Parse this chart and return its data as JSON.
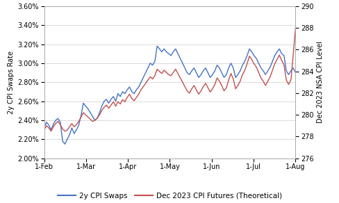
{
  "ylabel_left": "2y CPI Swaps Rate",
  "ylabel_right": "Dec 2023 NSA CPI Level",
  "ylim_left": [
    0.02,
    0.036
  ],
  "ylim_right": [
    276,
    290
  ],
  "yticks_left": [
    0.02,
    0.022,
    0.024,
    0.026,
    0.028,
    0.03,
    0.032,
    0.034,
    0.036
  ],
  "yticks_right": [
    276,
    278,
    280,
    282,
    284,
    286,
    288,
    290
  ],
  "xtick_labels": [
    "1-Feb",
    "1-Mar",
    "1-Apr",
    "1-May",
    "1-Jun",
    "1-Jul",
    "1-Aug"
  ],
  "color_swap": "#4472C4",
  "color_futures": "#C0504D",
  "legend_labels": [
    "2y CPI Swaps",
    "Dec 2023 CPI Futures (Theoretical)"
  ],
  "swap_data": [
    0.0232,
    0.0238,
    0.0235,
    0.023,
    0.0236,
    0.024,
    0.0242,
    0.0238,
    0.0218,
    0.0215,
    0.022,
    0.0225,
    0.0232,
    0.0226,
    0.023,
    0.0235,
    0.0245,
    0.0258,
    0.0255,
    0.0252,
    0.0248,
    0.0244,
    0.024,
    0.0242,
    0.0248,
    0.0255,
    0.026,
    0.0262,
    0.0258,
    0.0262,
    0.0265,
    0.026,
    0.0268,
    0.0265,
    0.027,
    0.0268,
    0.0272,
    0.0275,
    0.027,
    0.0268,
    0.0272,
    0.0275,
    0.028,
    0.0285,
    0.029,
    0.0295,
    0.03,
    0.0298,
    0.0302,
    0.0318,
    0.0315,
    0.0312,
    0.0315,
    0.0312,
    0.031,
    0.0308,
    0.0312,
    0.0315,
    0.031,
    0.0305,
    0.03,
    0.0295,
    0.029,
    0.0288,
    0.0292,
    0.0295,
    0.029,
    0.0285,
    0.0288,
    0.0292,
    0.0295,
    0.029,
    0.0285,
    0.0288,
    0.0292,
    0.0298,
    0.0295,
    0.029,
    0.0285,
    0.0288,
    0.0295,
    0.03,
    0.0295,
    0.0285,
    0.0288,
    0.0292,
    0.0298,
    0.0302,
    0.0308,
    0.0315,
    0.0312,
    0.0308,
    0.0305,
    0.03,
    0.0295,
    0.0292,
    0.0288,
    0.0292,
    0.0296,
    0.0302,
    0.0308,
    0.0312,
    0.0315,
    0.031,
    0.0308,
    0.0292,
    0.0288,
    0.0292,
    0.0295,
    0.029
  ],
  "futures_data": [
    278.6,
    279.0,
    278.8,
    278.5,
    278.9,
    279.2,
    279.4,
    279.1,
    278.7,
    278.5,
    278.6,
    278.9,
    279.2,
    278.9,
    279.1,
    279.4,
    279.8,
    280.2,
    280.0,
    279.8,
    279.6,
    279.4,
    279.5,
    279.7,
    280.0,
    280.4,
    280.7,
    280.9,
    280.6,
    280.9,
    281.2,
    280.8,
    281.2,
    281.0,
    281.4,
    281.2,
    281.6,
    281.9,
    281.5,
    281.3,
    281.6,
    281.9,
    282.3,
    282.6,
    282.9,
    283.2,
    283.5,
    283.3,
    283.6,
    284.2,
    284.0,
    283.8,
    284.1,
    283.9,
    283.7,
    283.6,
    283.9,
    284.2,
    283.8,
    283.4,
    283.0,
    282.6,
    282.2,
    282.0,
    282.4,
    282.7,
    282.3,
    281.9,
    282.2,
    282.6,
    282.9,
    282.5,
    282.1,
    282.4,
    282.8,
    283.4,
    283.1,
    282.7,
    282.2,
    282.5,
    283.2,
    283.8,
    283.3,
    282.4,
    282.7,
    283.1,
    283.7,
    284.1,
    284.7,
    285.4,
    285.1,
    284.7,
    284.4,
    283.9,
    283.4,
    283.1,
    282.7,
    283.1,
    283.5,
    284.1,
    284.7,
    285.1,
    285.5,
    285.0,
    284.6,
    283.2,
    282.8,
    283.2,
    285.5,
    288.0
  ]
}
